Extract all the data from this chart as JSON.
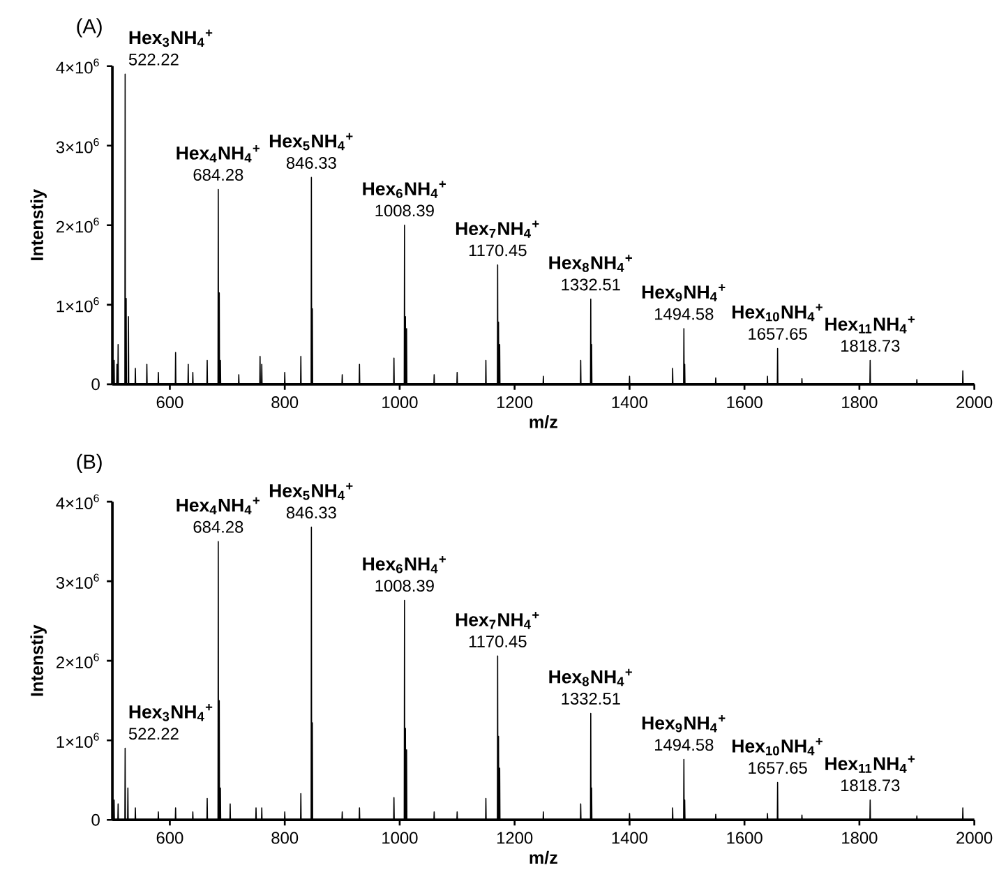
{
  "chart_data": [
    {
      "type": "line",
      "title": "(A)",
      "xlabel": "m/z",
      "ylabel": "Intenstiy",
      "xlim": [
        500,
        2000
      ],
      "xticks": [
        600,
        800,
        1000,
        1200,
        1400,
        1600,
        1800,
        2000
      ],
      "ylim": [
        0,
        4000000
      ],
      "yticks": [
        0,
        {
          "value": 1000000,
          "label": "1×10$^{6}$"
        },
        {
          "value": 2000000,
          "label": "2×10$^{6}$"
        },
        {
          "value": 3000000,
          "label": "3×10$^{6}$"
        },
        {
          "value": 4000000,
          "label": "4×10$^{6}$"
        }
      ],
      "x": [
        502.5,
        503,
        503.5,
        507.5,
        508,
        508.5,
        509.5,
        510,
        510.5,
        521.72,
        522.22,
        522.72,
        523.5,
        524,
        524.5,
        527.5,
        528,
        528.5,
        539.5,
        540,
        540.5,
        559.5,
        560,
        560.5,
        579.5,
        580,
        580.5,
        609.5,
        610,
        610.5,
        631.5,
        632,
        632.5,
        639.5,
        640,
        640.5,
        664.5,
        665,
        665.5,
        683.78,
        684.28,
        684.78,
        685.5,
        686,
        686.5,
        687.5,
        688,
        688.5,
        719.5,
        720,
        720.5,
        756.5,
        757,
        757.5,
        759.5,
        760,
        760.5,
        799.5,
        800,
        800.5,
        827.5,
        828,
        828.5,
        845.83,
        846.33,
        846.83,
        847.5,
        848,
        848.5,
        899.5,
        900,
        900.5,
        929.5,
        930,
        930.5,
        989.5,
        990,
        990.5,
        1007.89,
        1008.39,
        1008.89,
        1009.5,
        1010,
        1010.5,
        1011.5,
        1012,
        1012.5,
        1059.5,
        1060,
        1060.5,
        1099.5,
        1100,
        1100.5,
        1149.5,
        1150,
        1150.5,
        1169.95,
        1170.45,
        1170.95,
        1171.5,
        1172,
        1172.5,
        1173.5,
        1174,
        1174.5,
        1249.5,
        1250,
        1250.5,
        1314.5,
        1315,
        1315.5,
        1332.01,
        1332.51,
        1333.01,
        1333.5,
        1334,
        1334.5,
        1399.5,
        1400,
        1400.5,
        1474.5,
        1475,
        1475.5,
        1494.08,
        1494.58,
        1495.08,
        1495.5,
        1496,
        1496.5,
        1549.5,
        1550,
        1550.5,
        1639.5,
        1640,
        1640.5,
        1657.15,
        1657.65,
        1658.15,
        1699.5,
        1700,
        1700.5,
        1818.23,
        1818.73,
        1819.23,
        1899.5,
        1900,
        1900.5,
        1979.5,
        1980,
        1980.5
      ],
      "series": [
        {
          "color": "#000000",
          "values": [
            0,
            300000,
            0,
            0,
            250000,
            0,
            0,
            500000,
            0,
            0,
            3900000,
            0,
            0,
            1080000,
            0,
            0,
            850000,
            0,
            0,
            200000,
            0,
            0,
            250000,
            0,
            0,
            150000,
            0,
            0,
            400000,
            0,
            0,
            250000,
            0,
            0,
            150000,
            0,
            0,
            300000,
            0,
            0,
            2450000,
            0,
            0,
            1150000,
            0,
            0,
            300000,
            0,
            0,
            120000,
            0,
            0,
            350000,
            0,
            0,
            250000,
            0,
            0,
            150000,
            0,
            0,
            350000,
            0,
            0,
            2600000,
            0,
            0,
            950000,
            0,
            0,
            120000,
            0,
            0,
            250000,
            0,
            0,
            330000,
            0,
            0,
            2000000,
            0,
            0,
            850000,
            0,
            0,
            700000,
            0,
            0,
            120000,
            0,
            0,
            150000,
            0,
            0,
            300000,
            0,
            0,
            1500000,
            0,
            0,
            780000,
            0,
            0,
            500000,
            0,
            0,
            100000,
            0,
            0,
            300000,
            0,
            0,
            1070000,
            0,
            0,
            500000,
            0,
            0,
            100000,
            0,
            0,
            200000,
            0,
            0,
            700000,
            0,
            0,
            250000,
            0,
            0,
            80000,
            0,
            0,
            100000,
            0,
            0,
            450000,
            0,
            0,
            70000,
            0,
            0,
            300000,
            0,
            0,
            60000,
            0,
            0,
            170000,
            0
          ]
        }
      ],
      "annotations": [
        {
          "text": "Hex$_{3}$NH$_{4}$$^{+}$",
          "x": 522.22,
          "y": 3900000
        },
        {
          "text": "522.22",
          "x": 522.22,
          "y": 3900000
        },
        {
          "text": "Hex$_{4}$NH$_{4}$$^{+}$",
          "x": 684.28,
          "y": 2450000
        },
        {
          "text": "684.28",
          "x": 684.28,
          "y": 2450000
        },
        {
          "text": "Hex$_{5}$NH$_{4}$$^{+}$",
          "x": 846.33,
          "y": 2600000
        },
        {
          "text": "846.33",
          "x": 846.33,
          "y": 2600000
        },
        {
          "text": "Hex$_{6}$NH$_{4}$$^{+}$",
          "x": 1008.39,
          "y": 2000000
        },
        {
          "text": "1008.39",
          "x": 1008.39,
          "y": 2000000
        },
        {
          "text": "Hex$_{7}$NH$_{4}$$^{+}$",
          "x": 1170.45,
          "y": 1500000
        },
        {
          "text": "1170.45",
          "x": 1170.45,
          "y": 1500000
        },
        {
          "text": "Hex$_{8}$NH$_{4}$$^{+}$",
          "x": 1332.51,
          "y": 1070000
        },
        {
          "text": "1332.51",
          "x": 1332.51,
          "y": 1070000
        },
        {
          "text": "Hex$_{9}$NH$_{4}$$^{+}$",
          "x": 1494.58,
          "y": 700000
        },
        {
          "text": "1494.58",
          "x": 1494.58,
          "y": 700000
        },
        {
          "text": "Hex$_{10}$NH$_{4}$$^{+}$",
          "x": 1657.65,
          "y": 450000
        },
        {
          "text": "1657.65",
          "x": 1657.65,
          "y": 450000
        },
        {
          "text": "Hex$_{11}$NH$_{4}$$^{+}$",
          "x": 1818.73,
          "y": 300000
        },
        {
          "text": "1818.73",
          "x": 1818.73,
          "y": 300000
        }
      ]
    },
    {
      "type": "line",
      "title": "(B)",
      "xlabel": "m/z",
      "ylabel": "Intenstiy",
      "xlim": [
        500,
        2000
      ],
      "xticks": [
        600,
        800,
        1000,
        1200,
        1400,
        1600,
        1800,
        2000
      ],
      "ylim": [
        0,
        4000000
      ],
      "yticks": [
        0,
        {
          "value": 1000000,
          "label": "1×10$^{6}$"
        },
        {
          "value": 2000000,
          "label": "2×10$^{6}$"
        },
        {
          "value": 3000000,
          "label": "3×10$^{6}$"
        },
        {
          "value": 4000000,
          "label": "4×10$^{6}$"
        }
      ],
      "x": [
        502.5,
        503,
        503.5,
        509.5,
        510,
        510.5,
        521.72,
        522.22,
        522.72,
        526.5,
        527,
        527.5,
        539.5,
        540,
        540.5,
        579.5,
        580,
        580.5,
        609.5,
        610,
        610.5,
        639.5,
        640,
        640.5,
        664.5,
        665,
        665.5,
        683.78,
        684.28,
        684.78,
        685.5,
        686,
        686.5,
        687.5,
        688,
        688.5,
        704.5,
        705,
        705.5,
        749.5,
        750,
        750.5,
        759.5,
        760,
        760.5,
        799.5,
        800,
        800.5,
        827.5,
        828,
        828.5,
        845.83,
        846.33,
        846.83,
        847.5,
        848,
        848.5,
        899.5,
        900,
        900.5,
        929.5,
        930,
        930.5,
        989.5,
        990,
        990.5,
        1007.89,
        1008.39,
        1008.89,
        1009.5,
        1010,
        1010.5,
        1011.5,
        1012,
        1012.5,
        1059.5,
        1060,
        1060.5,
        1099.5,
        1100,
        1100.5,
        1149.5,
        1150,
        1150.5,
        1169.95,
        1170.45,
        1170.95,
        1171.5,
        1172,
        1172.5,
        1173.5,
        1174,
        1174.5,
        1249.5,
        1250,
        1250.5,
        1314.5,
        1315,
        1315.5,
        1332.01,
        1332.51,
        1333.01,
        1333.5,
        1334,
        1334.5,
        1399.5,
        1400,
        1400.5,
        1474.5,
        1475,
        1475.5,
        1494.08,
        1494.58,
        1495.08,
        1495.5,
        1496,
        1496.5,
        1549.5,
        1550,
        1550.5,
        1639.5,
        1640,
        1640.5,
        1657.15,
        1657.65,
        1658.15,
        1699.5,
        1700,
        1700.5,
        1818.23,
        1818.73,
        1819.23,
        1899.5,
        1900,
        1900.5,
        1979.5,
        1980,
        1980.5
      ],
      "series": [
        {
          "color": "#000000",
          "values": [
            0,
            250000,
            0,
            0,
            200000,
            0,
            0,
            900000,
            0,
            0,
            400000,
            0,
            0,
            150000,
            0,
            0,
            100000,
            0,
            0,
            150000,
            0,
            0,
            100000,
            0,
            0,
            270000,
            0,
            0,
            3500000,
            0,
            0,
            1500000,
            0,
            0,
            400000,
            0,
            0,
            200000,
            0,
            0,
            150000,
            0,
            0,
            150000,
            0,
            0,
            100000,
            0,
            0,
            330000,
            0,
            0,
            3680000,
            0,
            0,
            1220000,
            0,
            0,
            100000,
            0,
            0,
            150000,
            0,
            0,
            280000,
            0,
            0,
            2760000,
            0,
            0,
            1150000,
            0,
            0,
            880000,
            0,
            0,
            100000,
            0,
            0,
            100000,
            0,
            0,
            270000,
            0,
            0,
            2060000,
            0,
            0,
            1050000,
            0,
            0,
            650000,
            0,
            0,
            100000,
            0,
            0,
            200000,
            0,
            0,
            1340000,
            0,
            0,
            400000,
            0,
            0,
            80000,
            0,
            0,
            150000,
            0,
            0,
            760000,
            0,
            0,
            250000,
            0,
            0,
            70000,
            0,
            0,
            80000,
            0,
            0,
            470000,
            0,
            0,
            60000,
            0,
            0,
            250000,
            0,
            0,
            50000,
            0,
            0,
            150000,
            0
          ]
        }
      ],
      "annotations": [
        {
          "text": "Hex$_{3}$NH$_{4}$$^{+}$",
          "x": 522.22,
          "y": 900000
        },
        {
          "text": "522.22",
          "x": 522.22,
          "y": 900000
        },
        {
          "text": "Hex$_{4}$NH$_{4}$$^{+}$",
          "x": 684.28,
          "y": 3500000
        },
        {
          "text": "684.28",
          "x": 684.28,
          "y": 3500000
        },
        {
          "text": "Hex$_{5}$NH$_{4}$$^{+}$",
          "x": 846.33,
          "y": 3680000
        },
        {
          "text": "846.33",
          "x": 846.33,
          "y": 3680000
        },
        {
          "text": "Hex$_{6}$NH$_{4}$$^{+}$",
          "x": 1008.39,
          "y": 2760000
        },
        {
          "text": "1008.39",
          "x": 1008.39,
          "y": 2760000
        },
        {
          "text": "Hex$_{7}$NH$_{4}$$^{+}$",
          "x": 1170.45,
          "y": 2060000
        },
        {
          "text": "1170.45",
          "x": 1170.45,
          "y": 2060000
        },
        {
          "text": "Hex$_{8}$NH$_{4}$$^{+}$",
          "x": 1332.51,
          "y": 1340000
        },
        {
          "text": "1332.51",
          "x": 1332.51,
          "y": 1340000
        },
        {
          "text": "Hex$_{9}$NH$_{4}$$^{+}$",
          "x": 1494.58,
          "y": 760000
        },
        {
          "text": "1494.58",
          "x": 1494.58,
          "y": 760000
        },
        {
          "text": "Hex$_{10}$NH$_{4}$$^{+}$",
          "x": 1657.65,
          "y": 470000
        },
        {
          "text": "1657.65",
          "x": 1657.65,
          "y": 470000
        },
        {
          "text": "Hex$_{11}$NH$_{4}$$^{+}$",
          "x": 1818.73,
          "y": 250000
        },
        {
          "text": "1818.73",
          "x": 1818.73,
          "y": 250000
        }
      ]
    }
  ]
}
